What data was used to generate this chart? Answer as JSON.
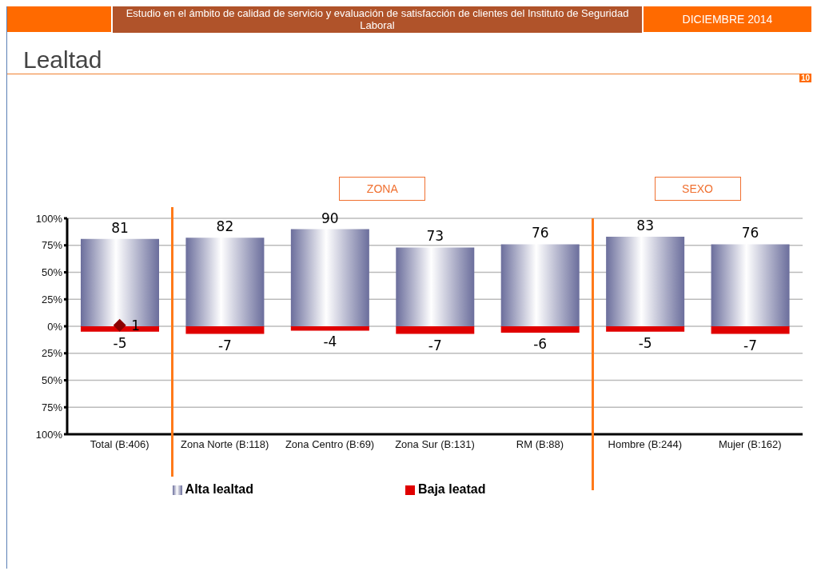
{
  "chart_data": {
    "type": "bar",
    "title": "Lealtad",
    "subtitle": "Estudio en el ámbito de calidad de servicio y evaluación de satisfacción de clientes del Instituto de Seguridad Laboral",
    "annotations": [
      "DICIEMBRE 2014",
      "ZONA",
      "SEXO",
      "10"
    ],
    "categories": [
      "Total (B:406)",
      "Zona Norte (B:118)",
      "Zona Centro (B:69)",
      "Zona Sur (B:131)",
      "RM (B:88)",
      "Hombre (B:244)",
      "Mujer (B:162)"
    ],
    "series": [
      {
        "name": "Alta lealtad",
        "color": "#6b6e9c",
        "values": [
          81,
          82,
          90,
          73,
          76,
          83,
          76
        ]
      },
      {
        "name": "Baja leatad",
        "color": "#e00000",
        "values": [
          -5,
          -7,
          -4,
          -7,
          -6,
          -5,
          -7
        ]
      },
      {
        "type": "scatter",
        "color": "#8b0000",
        "values": [
          1,
          null,
          null,
          null,
          null,
          null,
          null
        ]
      }
    ],
    "stacked": true,
    "data_labels": true,
    "marker": "diamond",
    "grid": "y",
    "legend": "bottom",
    "ylim": [
      -100,
      100
    ],
    "yticks": [
      {
        "value": -100,
        "label": "100%"
      },
      {
        "value": -75,
        "label": "75%"
      },
      {
        "value": -50,
        "label": "50%"
      },
      {
        "value": -25,
        "label": "25%"
      },
      {
        "value": 0,
        "label": "0%"
      },
      {
        "value": 25,
        "label": "25%"
      },
      {
        "value": 50,
        "label": "50%"
      },
      {
        "value": 75,
        "label": "75%"
      },
      {
        "value": 100,
        "label": "100%"
      }
    ]
  }
}
